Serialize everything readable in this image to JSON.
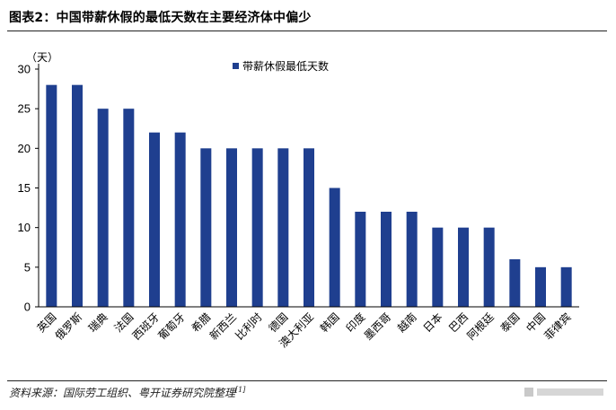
{
  "header": {
    "title": "图表2：中国带薪休假的最低天数在主要经济体中偏少"
  },
  "footer": {
    "source": "资料来源：国际劳工组织、粤开证券研究院整理",
    "source_sup": "[1]"
  },
  "colors": {
    "bar": "#1f3f8f",
    "axis": "#000000"
  },
  "chart_data": {
    "type": "bar",
    "title": "",
    "unit_label": "（天）",
    "xlabel": "",
    "ylabel": "",
    "ylim": [
      0,
      30
    ],
    "yticks": [
      0,
      5,
      10,
      15,
      20,
      25,
      30
    ],
    "grid": false,
    "legend_position": "top-center",
    "categories": [
      "英国",
      "俄罗斯",
      "瑞典",
      "法国",
      "西班牙",
      "葡萄牙",
      "希腊",
      "新西兰",
      "比利时",
      "德国",
      "澳大利亚",
      "韩国",
      "印度",
      "墨西哥",
      "越南",
      "日本",
      "巴西",
      "阿根廷",
      "泰国",
      "中国",
      "菲律宾"
    ],
    "series": [
      {
        "name": "带薪休假最低天数",
        "values": [
          28,
          28,
          25,
          25,
          22,
          22,
          20,
          20,
          20,
          20,
          20,
          15,
          12,
          12,
          12,
          10,
          10,
          10,
          6,
          5,
          5
        ]
      }
    ]
  }
}
